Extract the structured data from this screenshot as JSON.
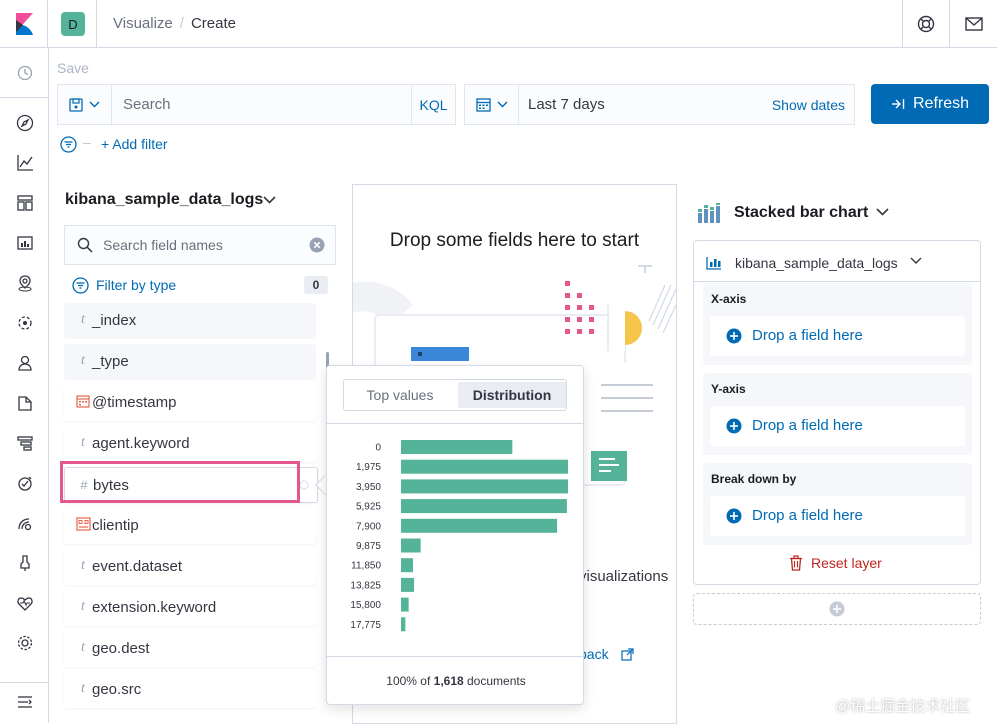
{
  "header": {
    "space_initial": "D",
    "breadcrumb_parent": "Visualize",
    "breadcrumb_separator": "/",
    "breadcrumb_current": "Create",
    "icons": [
      "kibana-logo-icon",
      "help-icon",
      "mail-icon"
    ]
  },
  "leftnav": {
    "items": [
      "recently-viewed-icon",
      "discover-icon",
      "visualize-icon",
      "dashboard-icon",
      "canvas-icon",
      "maps-icon",
      "machine-learning-icon",
      "infrastructure-icon",
      "logs-icon",
      "apm-icon",
      "uptime-icon",
      "siem-icon",
      "dev-tools-icon",
      "stack-monitoring-icon",
      "management-icon",
      "collapse-menu-icon"
    ]
  },
  "toolbar": {
    "save_label": "Save",
    "search_placeholder": "Search",
    "kql_label": "KQL",
    "date_range": "Last 7 days",
    "show_dates": "Show dates",
    "refresh_label": "Refresh",
    "add_filter": "+ Add filter"
  },
  "field_list": {
    "index_pattern": "kibana_sample_data_logs",
    "search_placeholder": "Search field names",
    "filter_by_type": "Filter by type",
    "filter_count": "0",
    "fields": [
      {
        "type": "t",
        "name": "_index"
      },
      {
        "type": "t",
        "name": "_type"
      },
      {
        "type": "date",
        "name": "@timestamp"
      },
      {
        "type": "t",
        "name": "agent.keyword"
      },
      {
        "type": "#",
        "name": "bytes"
      },
      {
        "type": "ip",
        "name": "clientip"
      },
      {
        "type": "t",
        "name": "event.dataset"
      },
      {
        "type": "t",
        "name": "extension.keyword"
      },
      {
        "type": "t",
        "name": "geo.dest"
      },
      {
        "type": "t",
        "name": "geo.src"
      }
    ]
  },
  "workspace": {
    "drop_title": "Drop some fields here to start",
    "viz_text": "visualizations",
    "feedback_link": "back"
  },
  "popover": {
    "tab_top_values": "Top values",
    "tab_distribution": "Distribution",
    "footer_prefix": "100% of ",
    "footer_count": "1,618",
    "footer_suffix": " documents",
    "bar_color": "#54b399",
    "chart_data": {
      "type": "bar",
      "orientation": "horizontal",
      "categories": [
        "0",
        "1,975",
        "3,950",
        "5,925",
        "7,900",
        "9,875",
        "11,850",
        "13,825",
        "15,800",
        "17,775"
      ],
      "values": [
        1020,
        1530,
        1530,
        1520,
        1430,
        180,
        110,
        120,
        70,
        40
      ],
      "xlim": [
        0,
        1530
      ]
    }
  },
  "config": {
    "chart_type": "Stacked bar chart",
    "layer_index": "kibana_sample_data_logs",
    "dimensions": [
      {
        "title": "X-axis",
        "drop": "Drop a field here"
      },
      {
        "title": "Y-axis",
        "drop": "Drop a field here"
      },
      {
        "title": "Break down by",
        "drop": "Drop a field here"
      }
    ],
    "reset_layer": "Reset layer"
  },
  "watermark": "@稀土掘金技术社区",
  "colors": {
    "accent": "#006bb4",
    "danger": "#bd271e",
    "highlight": "#e2578c",
    "vis": "#54b399"
  }
}
